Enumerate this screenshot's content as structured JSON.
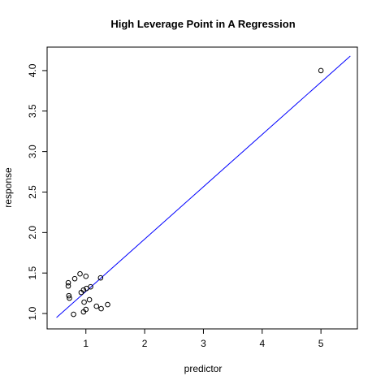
{
  "chart_data": {
    "type": "scatter",
    "title": "High Leverage Point in A Regression",
    "xlabel": "predictor",
    "ylabel": "response",
    "x": [
      0.7,
      0.7,
      0.71,
      0.72,
      0.81,
      0.9,
      1.0,
      0.92,
      0.96,
      1.01,
      1.08,
      1.25,
      0.79,
      0.96,
      1.0,
      0.97,
      1.06,
      1.18,
      1.26,
      1.37,
      5.0
    ],
    "values": [
      1.38,
      1.34,
      1.22,
      1.19,
      1.43,
      1.49,
      1.46,
      1.26,
      1.29,
      1.31,
      1.33,
      1.44,
      0.99,
      1.02,
      1.05,
      1.14,
      1.17,
      1.09,
      1.06,
      1.11,
      4.0
    ],
    "color": "#000000",
    "fit_line": {
      "x": [
        0.5,
        5.5
      ],
      "y": [
        0.95,
        4.18
      ],
      "color": "#0000ff"
    },
    "xlim": [
      0.34,
      5.62
    ],
    "ylim": [
      0.81,
      4.29
    ],
    "xticks": [
      1,
      2,
      3,
      4,
      5
    ],
    "yticks": [
      {
        "value": 1,
        "label": "1.0"
      },
      {
        "value": 1.5,
        "label": "1.5"
      },
      {
        "value": 2,
        "label": "2.0"
      },
      {
        "value": 2.5,
        "label": "2.5"
      },
      {
        "value": 3,
        "label": "3.0"
      },
      {
        "value": 3.5,
        "label": "3.5"
      },
      {
        "value": 4,
        "label": "4.0"
      }
    ]
  }
}
